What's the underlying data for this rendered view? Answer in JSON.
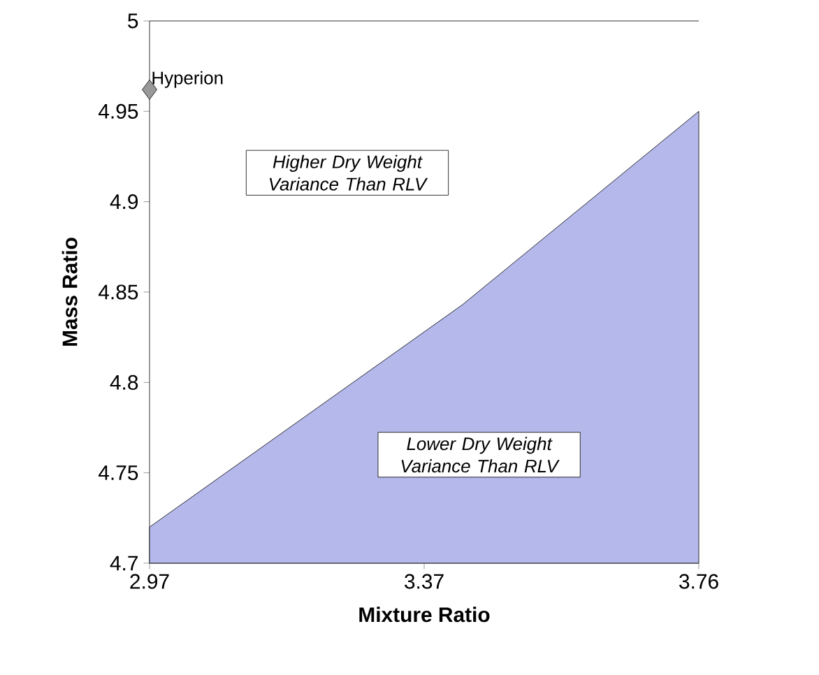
{
  "chart_data": {
    "type": "area",
    "xlabel": "Mixture Ratio",
    "ylabel": "Mass Ratio",
    "xlim": [
      2.97,
      3.76
    ],
    "ylim": [
      4.7,
      5
    ],
    "xticks": [
      2.97,
      {
        "value": 3.365,
        "label": "3.37"
      },
      3.76
    ],
    "yticks": [
      4.7,
      4.75,
      4.8,
      4.85,
      4.9,
      4.95,
      5
    ],
    "series": [
      {
        "color": "#b4b8ea",
        "x": [
          2.97,
          3.42,
          3.76
        ],
        "values": [
          4.72,
          4.843,
          4.95
        ]
      },
      {
        "type": "scatter",
        "name": "Hyperion",
        "color": "#999999",
        "marker": "diamond",
        "x": [
          2.97
        ],
        "values": [
          4.962
        ]
      }
    ],
    "annotations": [
      "Higher Dry Weight Variance Than RLV",
      "Lower Dry Weight Variance Than RLV"
    ]
  }
}
